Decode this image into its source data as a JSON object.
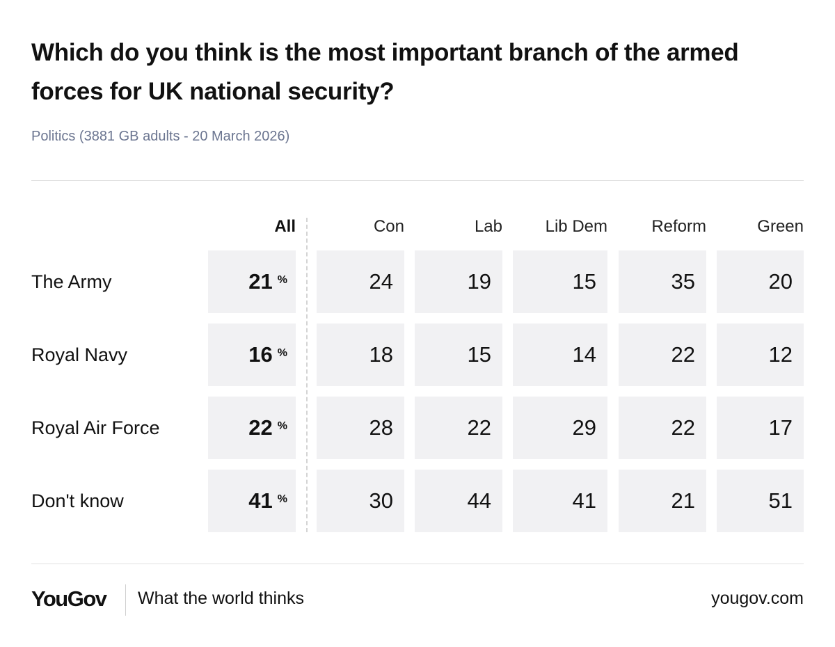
{
  "title": "Which do you think is the most important branch of the armed forces for UK national security?",
  "subtitle": "Politics (3881 GB adults - 20 March 2026)",
  "chart_data": {
    "type": "table",
    "columns": [
      "All",
      "Con",
      "Lab",
      "Lib Dem",
      "Reform",
      "Green"
    ],
    "percent_sign": "%",
    "rows": [
      {
        "label": "The Army",
        "values": [
          21,
          24,
          19,
          15,
          35,
          20
        ]
      },
      {
        "label": "Royal Navy",
        "values": [
          16,
          18,
          15,
          14,
          22,
          12
        ]
      },
      {
        "label": "Royal Air Force",
        "values": [
          22,
          28,
          22,
          29,
          22,
          17
        ]
      },
      {
        "label": "Don't know",
        "values": [
          41,
          30,
          44,
          41,
          21,
          51
        ]
      }
    ]
  },
  "footer": {
    "logo": "YouGov",
    "tagline": "What the world thinks",
    "url": "yougov.com"
  }
}
